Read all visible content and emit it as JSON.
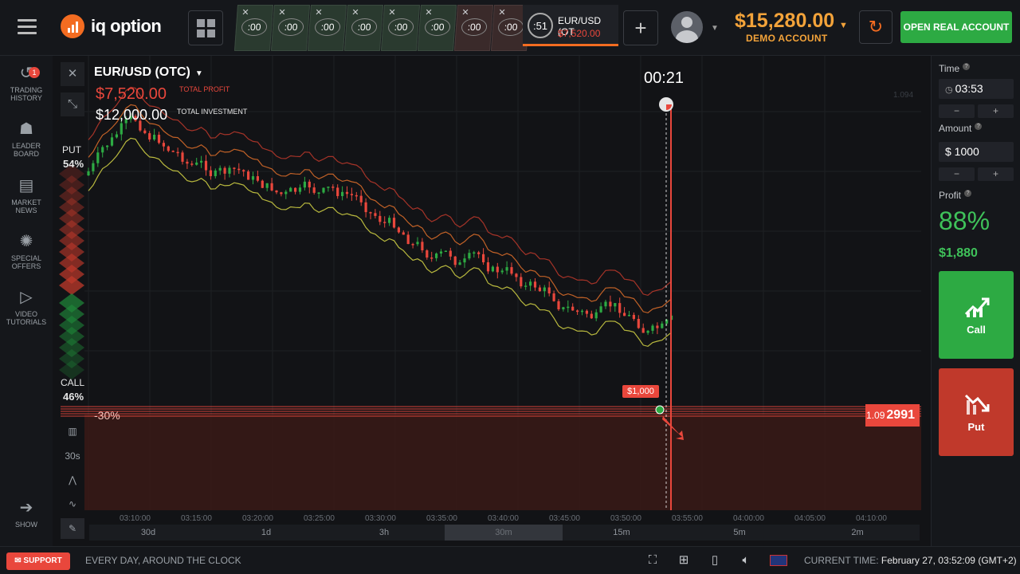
{
  "topbar": {
    "logo_text": "iq option",
    "tab_timers": [
      ":00",
      ":00",
      ":00",
      ":00",
      ":00",
      ":00",
      ":00",
      ":00"
    ],
    "active_tab": {
      "timer": ":51",
      "pair": "EUR/USD (OT",
      "amount": "$7,520.00"
    },
    "balance": "$15,280.00",
    "account_type": "DEMO ACCOUNT",
    "open_real_label": "OPEN REAL ACCOUNT"
  },
  "sidebar": {
    "items": [
      {
        "label": "TRADING HISTORY",
        "icon": "history-icon",
        "badge": "1"
      },
      {
        "label": "LEADER BOARD",
        "icon": "leaderboard-icon"
      },
      {
        "label": "MARKET NEWS",
        "icon": "news-icon"
      },
      {
        "label": "SPECIAL OFFERS",
        "icon": "offers-icon"
      },
      {
        "label": "VIDEO TUTORIALS",
        "icon": "play-icon"
      }
    ],
    "show_label": "SHOW"
  },
  "chart": {
    "pair": "EUR/USD (OTC)",
    "total_profit": "$7,520.00",
    "total_profit_label": "TOTAL PROFIT",
    "total_investment": "$12,000.00",
    "total_investment_label": "TOTAL INVESTMENT",
    "timer": "00:21",
    "put_label": "PUT",
    "put_pct": "54%",
    "call_label": "CALL",
    "call_pct": "46%",
    "pct_change": "-30%",
    "price_small": "1.09",
    "price_big": "2991",
    "deal_amount": "$1,000",
    "upper_price": "1.094",
    "time_axis": [
      "03:10:00",
      "03:15:00",
      "03:20:00",
      "03:25:00",
      "03:30:00",
      "03:35:00",
      "03:40:00",
      "03:45:00",
      "03:50:00",
      "03:55:00",
      "04:00:00",
      "04:05:00",
      "04:10:00"
    ],
    "periods": [
      "30d",
      "1d",
      "3h",
      "30m",
      "15m",
      "5m",
      "2m"
    ],
    "selected_period": "30m",
    "tools": [
      "bars-icon",
      "30s",
      "draw-icon",
      "indicators-icon",
      "pen-icon"
    ]
  },
  "panel": {
    "time_label": "Time",
    "time_value": "03:53",
    "amount_label": "Amount",
    "amount_value": "$ 1000",
    "profit_label": "Profit",
    "profit_pct": "88%",
    "profit_amount": "$1,880",
    "call_label": "Call",
    "put_label": "Put",
    "minus": "−",
    "plus": "+"
  },
  "bottombar": {
    "support_label": "SUPPORT",
    "tagline": "EVERY DAY, AROUND THE CLOCK",
    "current_time_label": "CURRENT TIME:",
    "current_time": "February 27, 03:52:09 (GMT+2)"
  },
  "colors": {
    "accent": "#f36c21",
    "call": "#2daa43",
    "put": "#c0392b",
    "balance": "#f3a33a"
  }
}
